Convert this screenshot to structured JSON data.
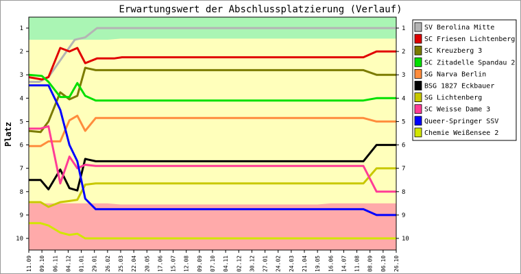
{
  "chart_data": {
    "type": "line",
    "title": "Erwartungswert der Abschlussplatzierung (Verlauf)",
    "ylabel": "Platz",
    "xlabel": "",
    "ylim": [
      1,
      10
    ],
    "y_inverted": true,
    "y_ticks": [
      1,
      2,
      3,
      4,
      5,
      6,
      7,
      8,
      9,
      10
    ],
    "x_ticks": [
      "11.09",
      "09.10",
      "06.11",
      "04.12",
      "01.01",
      "29.01",
      "26.02",
      "25.03",
      "22.04",
      "20.05",
      "17.06",
      "15.07",
      "12.08",
      "09.09",
      "07.10",
      "04.11",
      "02.12",
      "30.12",
      "27.01",
      "24.02",
      "24.03",
      "21.04",
      "19.05",
      "16.06",
      "14.07",
      "11.08",
      "08.09",
      "06.10",
      "26.10"
    ],
    "x_index": [
      0,
      1,
      2,
      3,
      4,
      5,
      6,
      7,
      8,
      9,
      10,
      11,
      12,
      13,
      14,
      15,
      16,
      17,
      18,
      19,
      20,
      21,
      22,
      23,
      24,
      25,
      26,
      27,
      28
    ],
    "legend_position": "right",
    "grid": false,
    "background_bands": {
      "promotion_color": "#aaf5b4",
      "middle_color": "#ffffbb",
      "relegation_color": "#ffaaaa",
      "promotion_upper": [
        1.5,
        1.5,
        1.5,
        1.5,
        1.5,
        1.5,
        1.5,
        1.45,
        1.45,
        1.45,
        1.45,
        1.45,
        1.45,
        1.45,
        1.45,
        1.45,
        1.45,
        1.45,
        1.45,
        1.45,
        1.45,
        1.45,
        1.45,
        1.45,
        1.45,
        1.45,
        1.45,
        1.45,
        1.45
      ],
      "relegation_lower": [
        8.5,
        8.5,
        8.5,
        8.5,
        8.5,
        8.5,
        8.5,
        8.55,
        8.55,
        8.55,
        8.55,
        8.55,
        8.55,
        8.55,
        8.55,
        8.55,
        8.55,
        8.55,
        8.55,
        8.55,
        8.55,
        8.55,
        8.55,
        8.5,
        8.5,
        8.5,
        8.5,
        8.5,
        8.5
      ]
    },
    "series": [
      {
        "name": "SV Berolina Mitte",
        "color": "#b4b4b4",
        "x": [
          0,
          0.8,
          1.5,
          2.5,
          3.5,
          4.3,
          5.2,
          6.3,
          28
        ],
        "values": [
          3.3,
          3.3,
          3.1,
          2.3,
          1.5,
          1.4,
          1.0,
          1.0,
          1.0
        ]
      },
      {
        "name": "SC Friesen Lichtenberg",
        "color": "#e00000",
        "x": [
          0,
          1,
          1.5,
          2.4,
          3.1,
          3.7,
          4.3,
          5.2,
          6.5,
          7.1,
          25.5,
          26.5,
          28
        ],
        "values": [
          3.1,
          3.2,
          3.1,
          1.85,
          2.0,
          1.85,
          2.5,
          2.3,
          2.3,
          2.25,
          2.25,
          2.0,
          2.0
        ],
        "note_x_scale": "index"
      },
      {
        "name": "SC Kreuzberg 3",
        "color": "#7b7b00",
        "x": [
          0,
          0.9,
          1.5,
          2.4,
          3.1,
          3.7,
          4.3,
          5.1,
          7.0,
          25.5,
          26.5,
          28
        ],
        "values": [
          5.4,
          5.45,
          5.0,
          3.75,
          4.05,
          3.9,
          2.7,
          2.8,
          2.8,
          2.8,
          3.0,
          3.0
        ]
      },
      {
        "name": "SC Zitadelle Spandau 2",
        "color": "#00e000",
        "x": [
          0,
          1,
          1.5,
          2.4,
          3.1,
          3.7,
          4.3,
          5.1,
          7.0,
          25.5,
          26.5,
          28
        ],
        "values": [
          3.0,
          3.05,
          3.3,
          3.95,
          3.95,
          3.35,
          3.9,
          4.1,
          4.1,
          4.1,
          4.0,
          4.0
        ]
      },
      {
        "name": "SG Narva Berlin",
        "color": "#ff8c3c",
        "x": [
          0,
          0.9,
          1.5,
          2.4,
          3.1,
          3.7,
          4.3,
          5.1,
          7.0,
          25.5,
          26.5,
          28
        ],
        "values": [
          6.05,
          6.05,
          5.85,
          5.85,
          4.95,
          4.75,
          5.4,
          4.85,
          4.85,
          4.85,
          5.0,
          5.0
        ]
      },
      {
        "name": "BSG 1827 Eckbauer",
        "color": "#000000",
        "x": [
          0,
          0.9,
          1.5,
          2.4,
          3.1,
          3.7,
          4.3,
          5.1,
          7.0,
          25.5,
          26.5,
          28
        ],
        "values": [
          7.5,
          7.5,
          7.9,
          7.05,
          7.85,
          7.95,
          6.6,
          6.7,
          6.7,
          6.7,
          6.0,
          6.0
        ]
      },
      {
        "name": "SG Lichtenberg",
        "color": "#c8c800",
        "x": [
          0,
          0.9,
          1.5,
          2.4,
          3.1,
          3.7,
          4.3,
          5.1,
          7.0,
          25.5,
          26.5,
          28
        ],
        "values": [
          8.45,
          8.45,
          8.65,
          8.45,
          8.4,
          8.35,
          7.7,
          7.65,
          7.65,
          7.65,
          7.0,
          7.0
        ]
      },
      {
        "name": "SC Weisse Dame 3",
        "color": "#ff3c96",
        "x": [
          0,
          0.9,
          1.5,
          2.4,
          3.1,
          3.7,
          4.3,
          5.1,
          7.0,
          25.5,
          26.5,
          28
        ],
        "values": [
          5.3,
          5.3,
          5.2,
          7.65,
          6.5,
          7.0,
          6.85,
          6.9,
          6.9,
          6.9,
          8.0,
          8.0
        ]
      },
      {
        "name": "Queer-Springer SSV",
        "color": "#0000ff",
        "x": [
          0,
          0.9,
          1.5,
          2.4,
          3.1,
          3.7,
          4.3,
          5.1,
          7.0,
          25.5,
          26.5,
          28
        ],
        "values": [
          3.45,
          3.45,
          3.45,
          4.5,
          6.0,
          6.7,
          8.3,
          8.75,
          8.75,
          8.75,
          9.0,
          9.0
        ]
      },
      {
        "name": "Chemie Weißensee 2",
        "color": "#d2e600",
        "x": [
          0,
          0.9,
          1.5,
          2.4,
          3.1,
          3.7,
          4.3,
          5.1,
          7.0,
          25.5,
          26.5,
          28
        ],
        "values": [
          9.35,
          9.35,
          9.45,
          9.75,
          9.85,
          9.8,
          10.0,
          10.0,
          10.0,
          10.0,
          10.0,
          10.0
        ]
      }
    ]
  }
}
